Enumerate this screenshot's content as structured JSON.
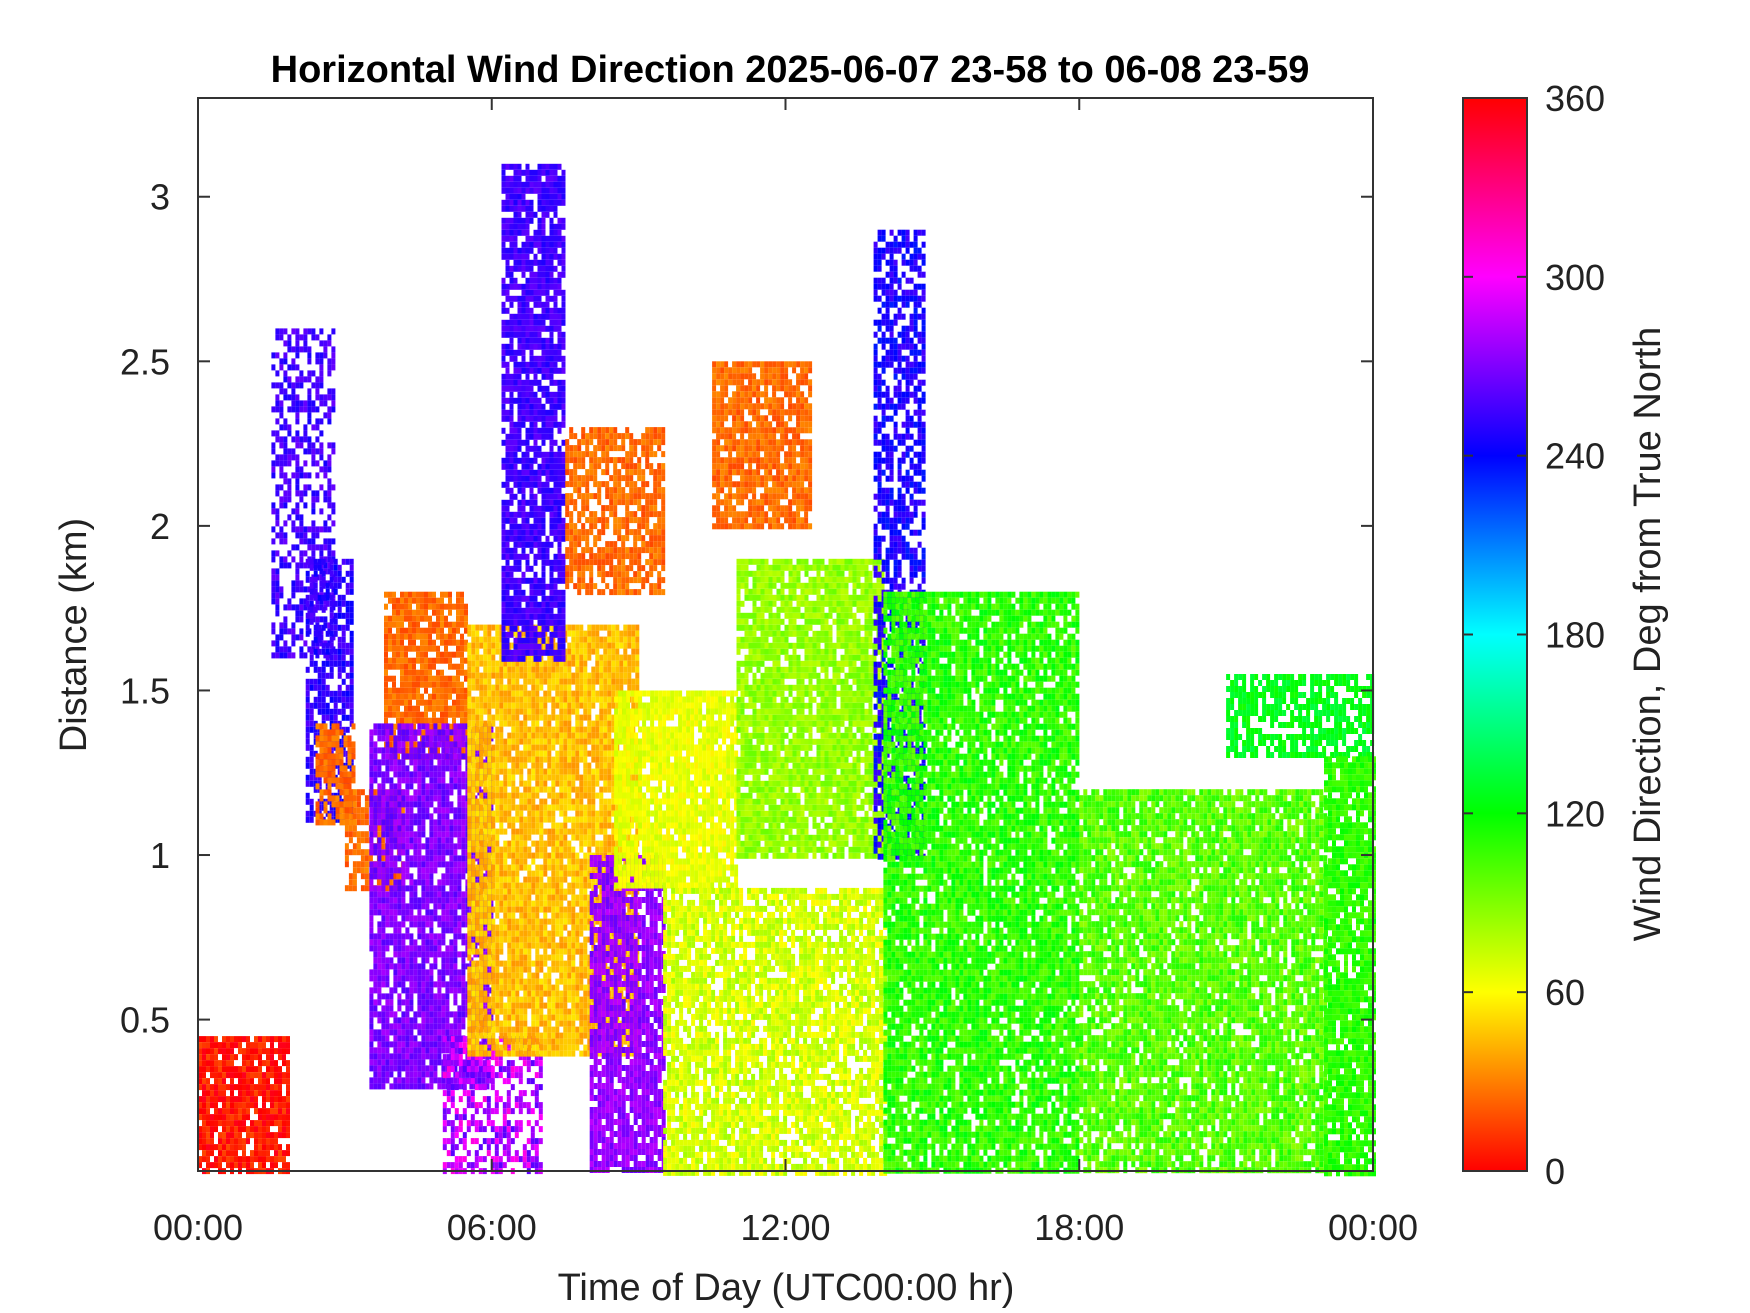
{
  "chart_data": {
    "type": "heatmap",
    "title": "Horizontal Wind Direction 2025-06-07 23-58 to 06-08 23-59",
    "xlabel": "Time of Day (UTC00:00 hr)",
    "ylabel": "Distance (km)",
    "colorbar_label": "Wind Direction, Deg from True North",
    "x_tick_labels": [
      "00:00",
      "06:00",
      "12:00",
      "18:00",
      "00:00"
    ],
    "x_ticks_hours": [
      0,
      6,
      12,
      18,
      24
    ],
    "xlim_hours": [
      0,
      24
    ],
    "y_ticks": [
      0.5,
      1,
      1.5,
      2,
      2.5,
      3
    ],
    "y_tick_labels": [
      "0.5",
      "1",
      "1.5",
      "2",
      "2.5",
      "3"
    ],
    "ylim_km": [
      0.04,
      3.3
    ],
    "colorbar_ticks": [
      0,
      60,
      120,
      180,
      240,
      300,
      360
    ],
    "colorbar_tick_labels": [
      "0",
      "60",
      "120",
      "180",
      "240",
      "300",
      "360"
    ],
    "colorbar_range": [
      0,
      360
    ],
    "colormap": "hsv",
    "grid": false,
    "regions": [
      {
        "t": [
          0,
          1.8
        ],
        "h": [
          0.04,
          0.45
        ],
        "dir": 5,
        "noise": 12,
        "density": 0.85
      },
      {
        "t": [
          1.5,
          2.8
        ],
        "h": [
          1.6,
          2.6
        ],
        "dir": 255,
        "noise": 10,
        "density": 0.55
      },
      {
        "t": [
          2.2,
          3.1
        ],
        "h": [
          1.1,
          1.9
        ],
        "dir": 250,
        "noise": 10,
        "density": 0.7
      },
      {
        "t": [
          2.4,
          3.2
        ],
        "h": [
          1.1,
          1.4
        ],
        "dir": 25,
        "noise": 8,
        "density": 0.8
      },
      {
        "t": [
          3.0,
          4.2
        ],
        "h": [
          0.9,
          1.2
        ],
        "dir": 25,
        "noise": 8,
        "density": 0.8
      },
      {
        "t": [
          3.8,
          5.5
        ],
        "h": [
          1.3,
          1.8
        ],
        "dir": 25,
        "noise": 8,
        "density": 0.85
      },
      {
        "t": [
          3.5,
          6.0
        ],
        "h": [
          0.3,
          1.4
        ],
        "dir": 270,
        "noise": 10,
        "density": 0.85
      },
      {
        "t": [
          5.0,
          7.0
        ],
        "h": [
          0.04,
          0.45
        ],
        "dir": 285,
        "noise": 25,
        "density": 0.6
      },
      {
        "t": [
          5.5,
          9.0
        ],
        "h": [
          0.4,
          1.7
        ],
        "dir": 45,
        "noise": 10,
        "density": 0.9
      },
      {
        "t": [
          6.2,
          7.5
        ],
        "h": [
          1.6,
          3.1
        ],
        "dir": 255,
        "noise": 8,
        "density": 0.8
      },
      {
        "t": [
          7.5,
          9.5
        ],
        "h": [
          1.8,
          2.3
        ],
        "dir": 25,
        "noise": 8,
        "density": 0.75
      },
      {
        "t": [
          8.0,
          9.5
        ],
        "h": [
          0.04,
          1.0
        ],
        "dir": 275,
        "noise": 10,
        "density": 0.85
      },
      {
        "t": [
          8.5,
          11.0
        ],
        "h": [
          0.9,
          1.5
        ],
        "dir": 65,
        "noise": 8,
        "density": 0.9
      },
      {
        "t": [
          10.5,
          12.5
        ],
        "h": [
          2.0,
          2.5
        ],
        "dir": 25,
        "noise": 8,
        "density": 0.85
      },
      {
        "t": [
          11.0,
          14.0
        ],
        "h": [
          1.0,
          1.9
        ],
        "dir": 85,
        "noise": 10,
        "density": 0.85
      },
      {
        "t": [
          9.5,
          14.0
        ],
        "h": [
          0.04,
          0.9
        ],
        "dir": 70,
        "noise": 12,
        "density": 0.8
      },
      {
        "t": [
          13.8,
          14.8
        ],
        "h": [
          1.0,
          2.9
        ],
        "dir": 245,
        "noise": 12,
        "density": 0.65
      },
      {
        "t": [
          14.0,
          18.0
        ],
        "h": [
          0.04,
          1.8
        ],
        "dir": 110,
        "noise": 14,
        "density": 0.85
      },
      {
        "t": [
          18.0,
          23.0
        ],
        "h": [
          0.04,
          1.2
        ],
        "dir": 100,
        "noise": 14,
        "density": 0.85
      },
      {
        "t": [
          21.0,
          24.0
        ],
        "h": [
          1.3,
          1.55
        ],
        "dir": 125,
        "noise": 10,
        "density": 0.7
      },
      {
        "t": [
          23.0,
          24.0
        ],
        "h": [
          0.04,
          1.3
        ],
        "dir": 110,
        "noise": 10,
        "density": 0.85
      }
    ]
  }
}
